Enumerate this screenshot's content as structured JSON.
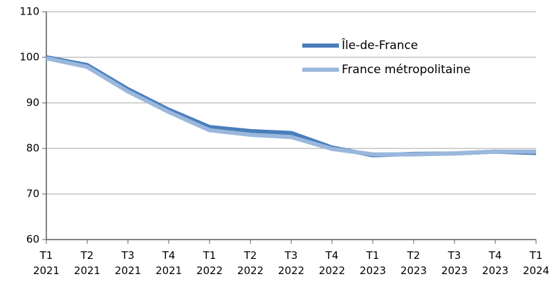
{
  "chart_data": {
    "type": "line",
    "categories": [
      "T1 2021",
      "T2 2021",
      "T3 2021",
      "T4 2021",
      "T1 2022",
      "T2 2022",
      "T3 2022",
      "T4 2022",
      "T1 2023",
      "T2 2023",
      "T3 2023",
      "T4 2023",
      "T1 2024"
    ],
    "series": [
      {
        "name": "Île-de-France",
        "color": "#4a7ebb",
        "values": [
          100,
          98.3,
          93,
          88.5,
          84.7,
          83.8,
          83.4,
          80.2,
          78.5,
          78.8,
          78.9,
          79.3,
          79.0
        ]
      },
      {
        "name": "France métropolitaine",
        "color": "#9ab8dc",
        "values": [
          99.8,
          97.9,
          92.5,
          88,
          84,
          83,
          82.5,
          79.9,
          78.7,
          78.7,
          78.9,
          79.3,
          79.3
        ]
      }
    ],
    "ylim": [
      60,
      110
    ],
    "yticks": [
      60,
      70,
      80,
      90,
      100,
      110
    ],
    "grid": true,
    "legend": "upper right"
  }
}
